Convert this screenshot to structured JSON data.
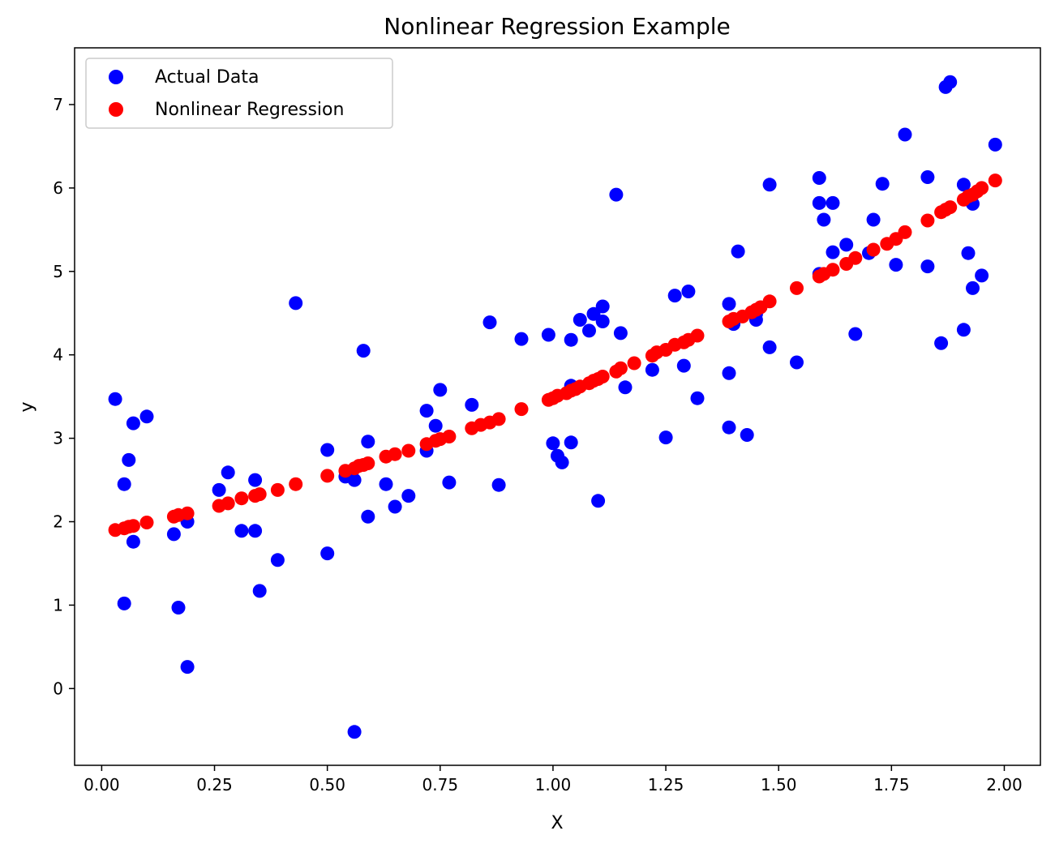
{
  "chart_data": {
    "type": "scatter",
    "title": "Nonlinear Regression Example",
    "xlabel": "X",
    "ylabel": "y",
    "xlim": [
      -0.06,
      2.08
    ],
    "ylim": [
      -0.92,
      7.68
    ],
    "xticks": [
      "0.00",
      "0.25",
      "0.50",
      "0.75",
      "1.00",
      "1.25",
      "1.50",
      "1.75",
      "2.00"
    ],
    "xtick_values": [
      0,
      0.25,
      0.5,
      0.75,
      1.0,
      1.25,
      1.5,
      1.75,
      2.0
    ],
    "yticks": [
      "0",
      "1",
      "2",
      "3",
      "4",
      "5",
      "6",
      "7"
    ],
    "ytick_values": [
      0,
      1,
      2,
      3,
      4,
      5,
      6,
      7
    ],
    "grid": false,
    "legend_position": "top-left",
    "series": [
      {
        "name": "Actual Data",
        "color": "#0000ff",
        "points": [
          [
            0.03,
            3.47
          ],
          [
            0.05,
            1.02
          ],
          [
            0.05,
            2.45
          ],
          [
            0.06,
            2.74
          ],
          [
            0.07,
            3.18
          ],
          [
            0.07,
            1.76
          ],
          [
            0.1,
            3.26
          ],
          [
            0.16,
            1.85
          ],
          [
            0.17,
            0.97
          ],
          [
            0.19,
            2.0
          ],
          [
            0.19,
            0.26
          ],
          [
            0.26,
            2.38
          ],
          [
            0.28,
            2.59
          ],
          [
            0.31,
            1.89
          ],
          [
            0.34,
            2.5
          ],
          [
            0.34,
            1.89
          ],
          [
            0.35,
            1.17
          ],
          [
            0.39,
            1.54
          ],
          [
            0.43,
            4.62
          ],
          [
            0.5,
            2.86
          ],
          [
            0.5,
            1.62
          ],
          [
            0.54,
            2.54
          ],
          [
            0.56,
            2.5
          ],
          [
            0.56,
            -0.52
          ],
          [
            0.58,
            4.05
          ],
          [
            0.59,
            2.06
          ],
          [
            0.59,
            2.96
          ],
          [
            0.63,
            2.45
          ],
          [
            0.65,
            2.18
          ],
          [
            0.68,
            2.31
          ],
          [
            0.72,
            3.33
          ],
          [
            0.72,
            2.85
          ],
          [
            0.74,
            3.15
          ],
          [
            0.75,
            3.58
          ],
          [
            0.77,
            2.47
          ],
          [
            0.82,
            3.4
          ],
          [
            0.86,
            4.39
          ],
          [
            0.88,
            2.44
          ],
          [
            0.93,
            4.19
          ],
          [
            0.99,
            4.24
          ],
          [
            1.0,
            2.94
          ],
          [
            1.01,
            2.79
          ],
          [
            1.02,
            2.71
          ],
          [
            1.04,
            3.63
          ],
          [
            1.04,
            2.95
          ],
          [
            1.04,
            4.18
          ],
          [
            1.06,
            4.42
          ],
          [
            1.08,
            4.29
          ],
          [
            1.09,
            4.49
          ],
          [
            1.1,
            2.25
          ],
          [
            1.11,
            4.58
          ],
          [
            1.11,
            4.4
          ],
          [
            1.14,
            5.92
          ],
          [
            1.15,
            4.26
          ],
          [
            1.16,
            3.61
          ],
          [
            1.22,
            3.82
          ],
          [
            1.25,
            3.01
          ],
          [
            1.27,
            4.71
          ],
          [
            1.29,
            3.87
          ],
          [
            1.3,
            4.76
          ],
          [
            1.32,
            3.48
          ],
          [
            1.39,
            4.61
          ],
          [
            1.39,
            3.78
          ],
          [
            1.39,
            3.13
          ],
          [
            1.4,
            4.37
          ],
          [
            1.41,
            5.24
          ],
          [
            1.43,
            3.04
          ],
          [
            1.45,
            4.42
          ],
          [
            1.45,
            4.49
          ],
          [
            1.48,
            6.04
          ],
          [
            1.48,
            4.09
          ],
          [
            1.54,
            3.91
          ],
          [
            1.59,
            6.12
          ],
          [
            1.59,
            5.82
          ],
          [
            1.59,
            4.97
          ],
          [
            1.6,
            5.62
          ],
          [
            1.62,
            5.82
          ],
          [
            1.62,
            5.23
          ],
          [
            1.65,
            5.32
          ],
          [
            1.67,
            4.25
          ],
          [
            1.7,
            5.22
          ],
          [
            1.71,
            5.62
          ],
          [
            1.73,
            6.05
          ],
          [
            1.76,
            5.08
          ],
          [
            1.78,
            6.64
          ],
          [
            1.83,
            6.13
          ],
          [
            1.83,
            5.06
          ],
          [
            1.86,
            4.14
          ],
          [
            1.87,
            7.21
          ],
          [
            1.88,
            7.27
          ],
          [
            1.91,
            4.3
          ],
          [
            1.91,
            6.04
          ],
          [
            1.92,
            5.22
          ],
          [
            1.93,
            4.8
          ],
          [
            1.93,
            5.81
          ],
          [
            1.95,
            4.95
          ],
          [
            1.98,
            6.52
          ]
        ]
      },
      {
        "name": "Nonlinear Regression",
        "color": "#ff0000",
        "points": [
          [
            0.03,
            1.9
          ],
          [
            0.05,
            1.92
          ],
          [
            0.06,
            1.94
          ],
          [
            0.07,
            1.95
          ],
          [
            0.1,
            1.99
          ],
          [
            0.16,
            2.06
          ],
          [
            0.17,
            2.08
          ],
          [
            0.19,
            2.1
          ],
          [
            0.26,
            2.19
          ],
          [
            0.28,
            2.22
          ],
          [
            0.31,
            2.28
          ],
          [
            0.34,
            2.31
          ],
          [
            0.35,
            2.33
          ],
          [
            0.39,
            2.38
          ],
          [
            0.43,
            2.45
          ],
          [
            0.5,
            2.55
          ],
          [
            0.54,
            2.61
          ],
          [
            0.56,
            2.64
          ],
          [
            0.57,
            2.67
          ],
          [
            0.58,
            2.68
          ],
          [
            0.59,
            2.7
          ],
          [
            0.63,
            2.78
          ],
          [
            0.65,
            2.81
          ],
          [
            0.68,
            2.85
          ],
          [
            0.72,
            2.93
          ],
          [
            0.74,
            2.97
          ],
          [
            0.75,
            2.99
          ],
          [
            0.77,
            3.02
          ],
          [
            0.82,
            3.12
          ],
          [
            0.84,
            3.16
          ],
          [
            0.86,
            3.19
          ],
          [
            0.88,
            3.23
          ],
          [
            0.93,
            3.35
          ],
          [
            0.99,
            3.46
          ],
          [
            1.0,
            3.48
          ],
          [
            1.01,
            3.51
          ],
          [
            1.03,
            3.54
          ],
          [
            1.04,
            3.57
          ],
          [
            1.05,
            3.59
          ],
          [
            1.06,
            3.62
          ],
          [
            1.08,
            3.66
          ],
          [
            1.09,
            3.69
          ],
          [
            1.1,
            3.71
          ],
          [
            1.11,
            3.74
          ],
          [
            1.14,
            3.8
          ],
          [
            1.15,
            3.84
          ],
          [
            1.18,
            3.9
          ],
          [
            1.22,
            3.99
          ],
          [
            1.23,
            4.03
          ],
          [
            1.25,
            4.06
          ],
          [
            1.27,
            4.12
          ],
          [
            1.29,
            4.15
          ],
          [
            1.3,
            4.18
          ],
          [
            1.32,
            4.23
          ],
          [
            1.39,
            4.4
          ],
          [
            1.4,
            4.43
          ],
          [
            1.42,
            4.46
          ],
          [
            1.44,
            4.51
          ],
          [
            1.45,
            4.54
          ],
          [
            1.46,
            4.57
          ],
          [
            1.48,
            4.64
          ],
          [
            1.54,
            4.8
          ],
          [
            1.59,
            4.94
          ],
          [
            1.6,
            4.97
          ],
          [
            1.62,
            5.02
          ],
          [
            1.65,
            5.09
          ],
          [
            1.67,
            5.16
          ],
          [
            1.71,
            5.26
          ],
          [
            1.74,
            5.33
          ],
          [
            1.76,
            5.39
          ],
          [
            1.78,
            5.47
          ],
          [
            1.83,
            5.61
          ],
          [
            1.86,
            5.71
          ],
          [
            1.87,
            5.74
          ],
          [
            1.88,
            5.77
          ],
          [
            1.91,
            5.86
          ],
          [
            1.92,
            5.9
          ],
          [
            1.93,
            5.92
          ],
          [
            1.94,
            5.96
          ],
          [
            1.95,
            6.0
          ],
          [
            1.98,
            6.09
          ]
        ]
      }
    ]
  }
}
